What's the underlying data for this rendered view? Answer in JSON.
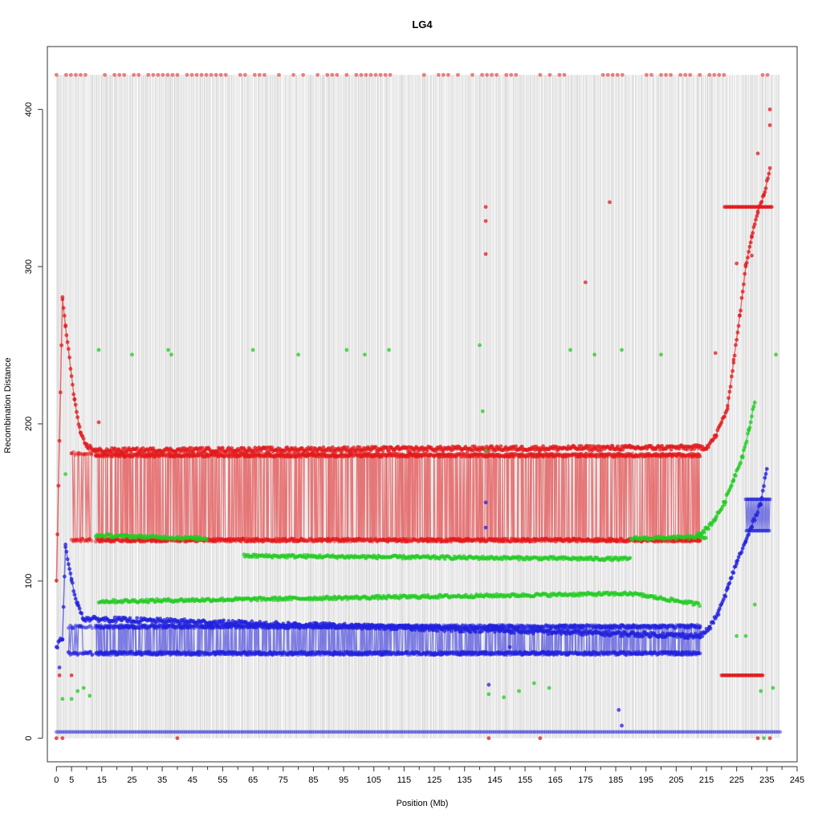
{
  "chart_data": {
    "type": "scatter",
    "title": "LG4",
    "xlabel": "Position (Mb)",
    "ylabel": "Recombination Distance",
    "xlim": [
      -3,
      245
    ],
    "ylim": [
      -15,
      440
    ],
    "x_ticks": [
      0,
      5,
      15,
      25,
      35,
      45,
      55,
      65,
      75,
      85,
      95,
      105,
      115,
      125,
      135,
      145,
      155,
      165,
      175,
      185,
      195,
      205,
      215,
      225,
      235,
      245
    ],
    "x_tick_labels": [
      "0",
      "5",
      "15",
      "25",
      "35",
      "45",
      "55",
      "65",
      "75",
      "85",
      "95",
      "105",
      "115",
      "125",
      "135",
      "145",
      "155",
      "165",
      "175",
      "185",
      "195",
      "205",
      "215",
      "225",
      "235",
      "245"
    ],
    "y_ticks": [
      0,
      100,
      200,
      300,
      400
    ],
    "y_tick_labels": [
      "0",
      "100",
      "200",
      "300",
      "400"
    ],
    "marker_span": [
      0,
      239
    ],
    "grid": false,
    "legend": "none",
    "colors": {
      "red": "#e31a1c",
      "green": "#22cc22",
      "blue": "#2222dd",
      "gray": "#aaaaaa"
    },
    "series": [
      {
        "color": "red",
        "bands": [
          {
            "x": [
              13,
              213
            ],
            "y": [
              125,
              181
            ],
            "density": "high"
          },
          {
            "x": [
              5,
              12
            ],
            "y": [
              125,
              182
            ],
            "density": "medium"
          }
        ],
        "curve": [
          [
            0,
            99
          ],
          [
            2,
            280
          ],
          [
            3,
            262
          ],
          [
            6,
            215
          ],
          [
            8,
            193
          ],
          [
            10,
            186
          ],
          [
            13,
            183
          ],
          [
            215,
            185
          ],
          [
            218,
            192
          ],
          [
            222,
            210
          ],
          [
            224,
            240
          ],
          [
            226,
            268
          ],
          [
            228,
            300
          ],
          [
            230,
            320
          ],
          [
            232,
            335
          ],
          [
            234,
            345
          ],
          [
            236,
            362
          ]
        ],
        "flat_segments": [
          {
            "x": [
              220,
              234
            ],
            "y": 40
          },
          {
            "x": [
              221,
              237
            ],
            "y": 338
          },
          {
            "x": [
              0,
              240
            ],
            "y": 422
          }
        ],
        "outliers": [
          [
            1,
            40
          ],
          [
            5,
            40
          ],
          [
            14,
            201
          ],
          [
            142,
            338
          ],
          [
            142,
            329
          ],
          [
            142,
            308
          ],
          [
            175,
            290
          ],
          [
            183,
            341
          ],
          [
            218,
            245
          ],
          [
            225,
            302
          ],
          [
            230,
            307
          ],
          [
            232,
            372
          ],
          [
            236,
            390
          ],
          [
            236,
            400
          ],
          [
            40,
            0
          ],
          [
            0,
            0
          ],
          [
            2,
            0
          ],
          [
            143,
            0
          ],
          [
            160,
            0
          ],
          [
            232,
            0
          ],
          [
            236,
            0
          ]
        ]
      },
      {
        "color": "green",
        "levels": [
          {
            "x": [
              13,
              50
            ],
            "y": [
              129,
              127
            ]
          },
          {
            "x": [
              14,
              190
            ],
            "y": [
              87,
              92
            ]
          },
          {
            "x": [
              62,
              190
            ],
            "y": [
              116,
              114
            ]
          },
          {
            "x": [
              190,
              215
            ],
            "y": [
              127,
              128
            ]
          },
          {
            "x": [
              190,
              213
            ],
            "y": [
              92,
              85
            ]
          }
        ],
        "curve": [
          [
            212,
            130
          ],
          [
            215,
            133
          ],
          [
            218,
            140
          ],
          [
            221,
            150
          ],
          [
            224,
            165
          ],
          [
            227,
            180
          ],
          [
            229,
            195
          ],
          [
            231,
            215
          ]
        ],
        "outliers": [
          [
            3,
            168
          ],
          [
            2,
            25
          ],
          [
            5,
            25
          ],
          [
            7,
            30
          ],
          [
            9,
            32
          ],
          [
            11,
            27
          ],
          [
            14,
            247
          ],
          [
            25,
            244
          ],
          [
            37,
            247
          ],
          [
            38,
            244
          ],
          [
            65,
            247
          ],
          [
            80,
            244
          ],
          [
            96,
            247
          ],
          [
            102,
            244
          ],
          [
            110,
            247
          ],
          [
            140,
            250
          ],
          [
            141,
            208
          ],
          [
            142,
            183
          ],
          [
            143,
            28
          ],
          [
            148,
            26
          ],
          [
            153,
            30
          ],
          [
            158,
            35
          ],
          [
            163,
            32
          ],
          [
            170,
            247
          ],
          [
            178,
            244
          ],
          [
            187,
            247
          ],
          [
            200,
            244
          ],
          [
            225,
            65
          ],
          [
            228,
            65
          ],
          [
            231,
            85
          ],
          [
            233,
            30
          ],
          [
            234,
            0
          ],
          [
            238,
            244
          ],
          [
            237,
            32
          ]
        ]
      },
      {
        "color": "blue",
        "bands": [
          {
            "x": [
              13,
              213
            ],
            "y": [
              53,
              72
            ],
            "density": "high"
          },
          {
            "x": [
              4,
              12
            ],
            "y": [
              53,
              72
            ],
            "density": "medium"
          }
        ],
        "curve": [
          [
            0,
            58
          ],
          [
            2,
            64
          ],
          [
            3,
            122
          ],
          [
            5,
            100
          ],
          [
            7,
            85
          ],
          [
            9,
            76
          ],
          [
            213,
            65
          ],
          [
            216,
            70
          ],
          [
            219,
            80
          ],
          [
            222,
            95
          ],
          [
            225,
            112
          ],
          [
            228,
            125
          ],
          [
            230,
            135
          ],
          [
            233,
            150
          ],
          [
            235,
            172
          ]
        ],
        "flat_segments": [
          {
            "x": [
              228,
              236
            ],
            "y": [
              132,
              152
            ]
          },
          {
            "x": [
              0,
              240
            ],
            "y": 4
          }
        ],
        "outliers": [
          [
            142,
            150
          ],
          [
            142,
            134
          ],
          [
            1,
            45
          ],
          [
            143,
            34
          ],
          [
            186,
            18
          ],
          [
            187,
            8
          ],
          [
            150,
            58
          ]
        ]
      }
    ]
  }
}
